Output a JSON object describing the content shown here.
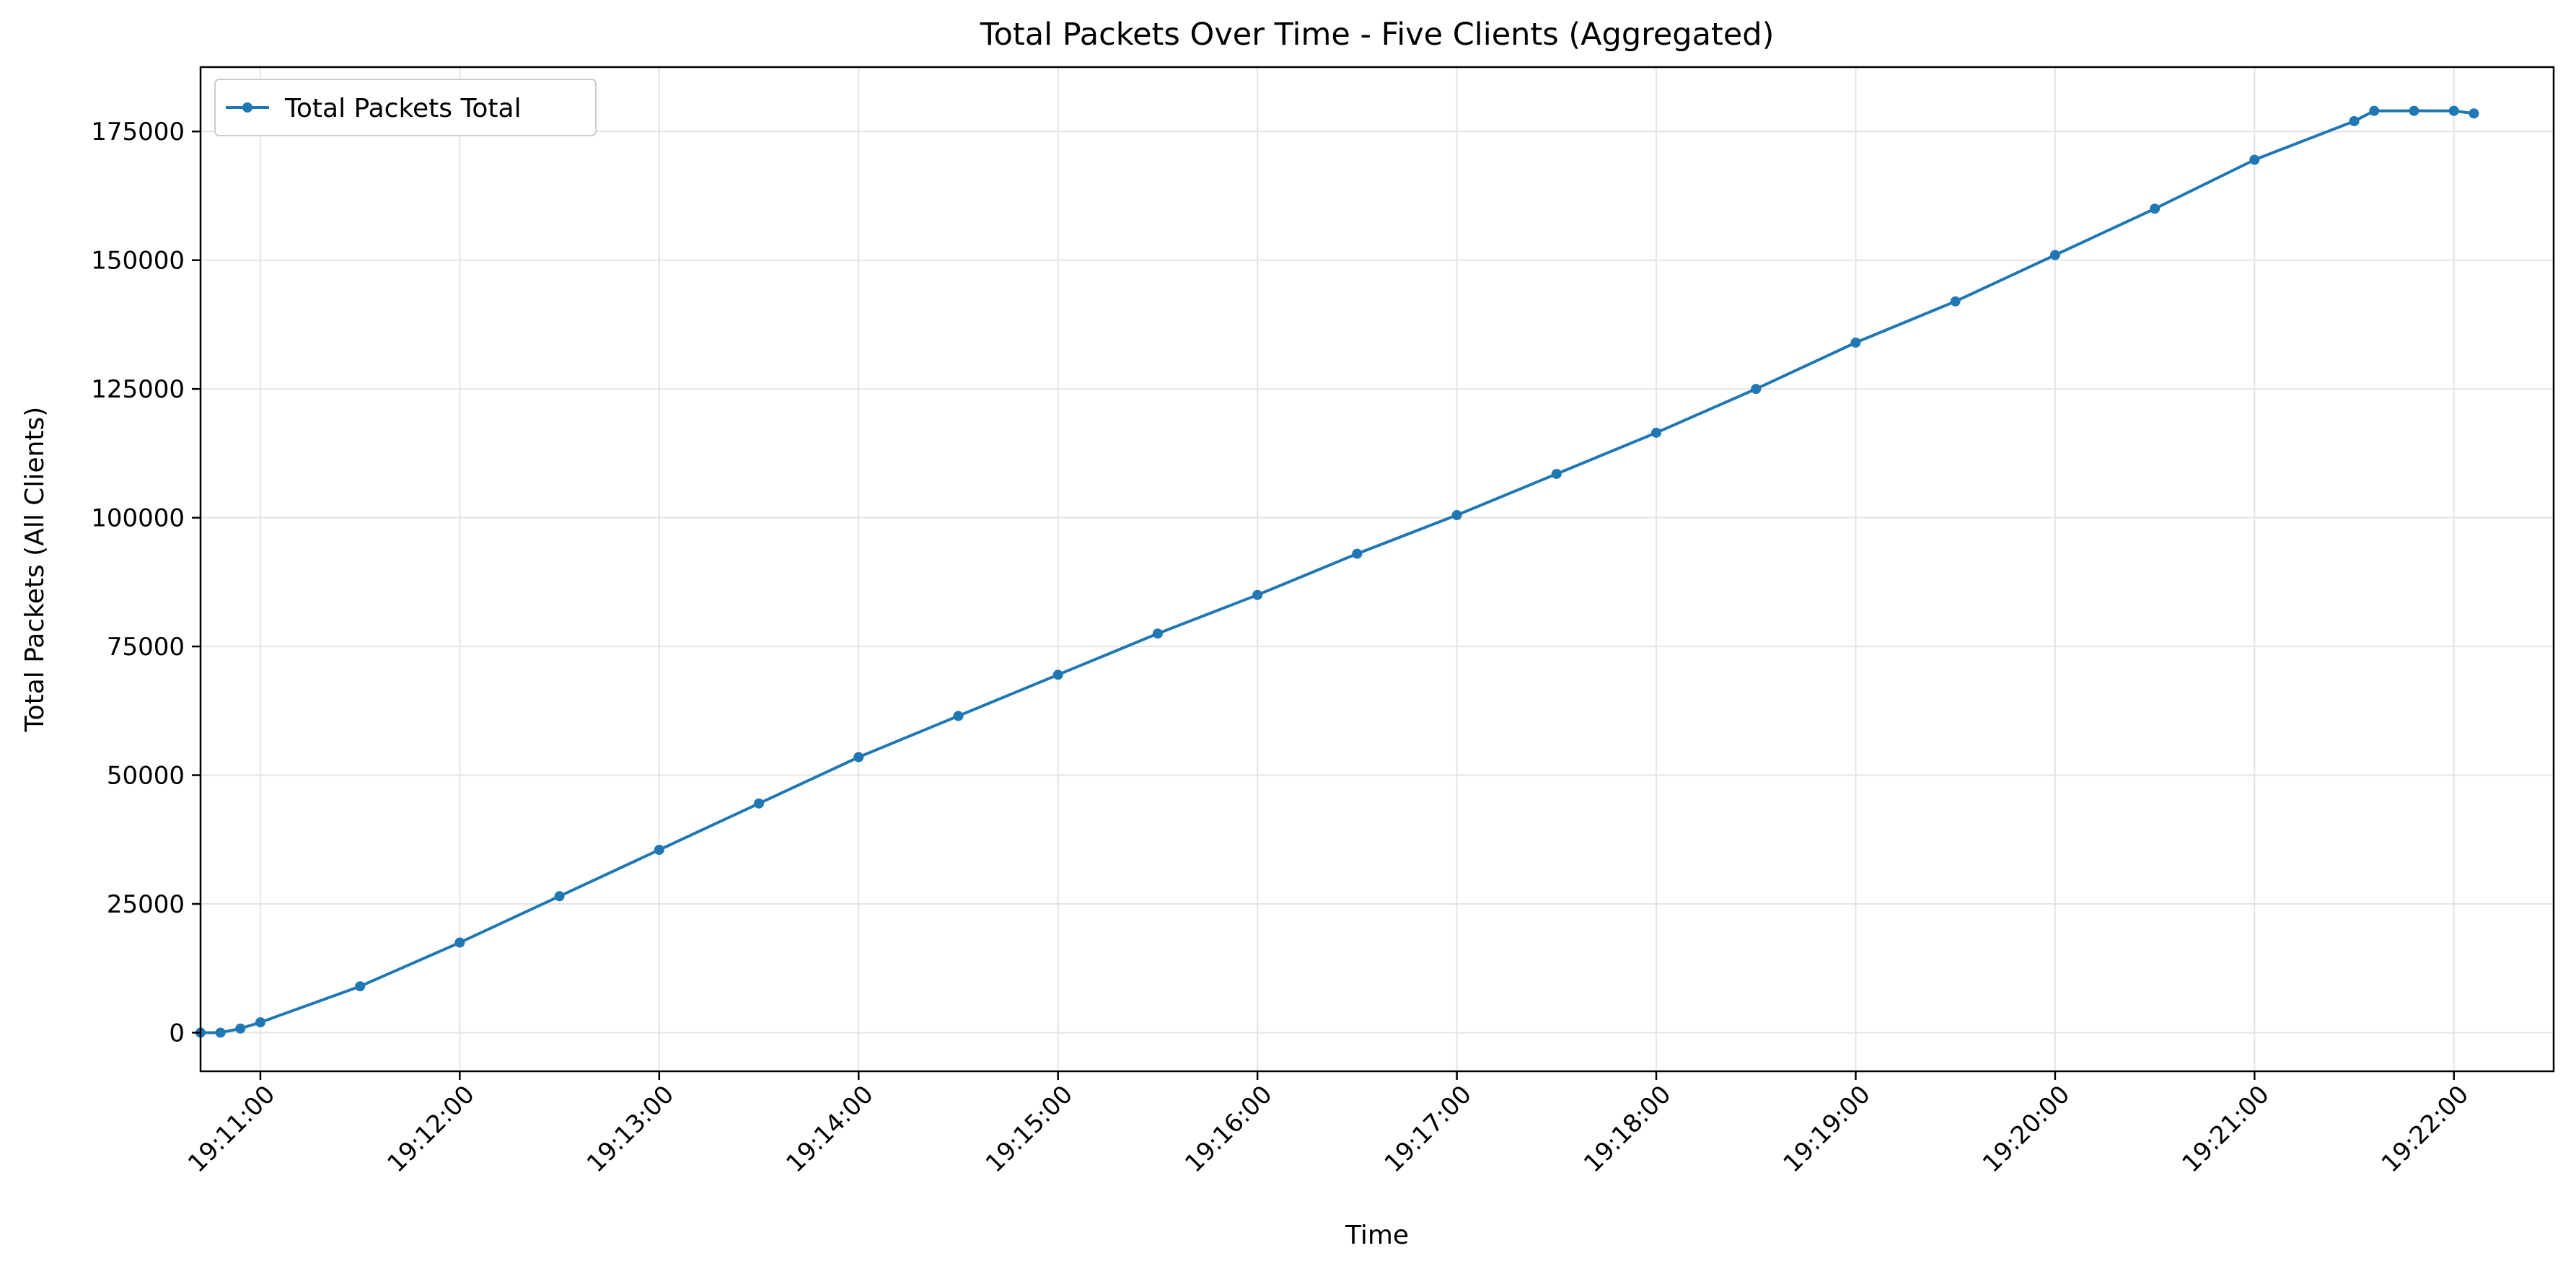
{
  "chart_data": {
    "type": "line",
    "title": "Total Packets Over Time - Five Clients (Aggregated)",
    "xlabel": "Time",
    "ylabel": "Total Packets (All Clients)",
    "legend": {
      "placement": "top-left"
    },
    "grid": true,
    "colors": {
      "series": "#1f77b4",
      "grid": "#e4e4e4"
    },
    "xlim": [
      "19:10:42",
      "19:22:30"
    ],
    "ylim": [
      -7500,
      187500
    ],
    "x_ticks": [
      "19:11:00",
      "19:12:00",
      "19:13:00",
      "19:14:00",
      "19:15:00",
      "19:16:00",
      "19:17:00",
      "19:18:00",
      "19:19:00",
      "19:20:00",
      "19:21:00",
      "19:22:00"
    ],
    "y_ticks": [
      "0",
      "25000",
      "50000",
      "75000",
      "100000",
      "125000",
      "150000",
      "175000"
    ],
    "series": [
      {
        "name": "Total Packets Total",
        "marker": "circle",
        "x": [
          "19:10:42",
          "19:10:48",
          "19:10:54",
          "19:11:00",
          "19:11:30",
          "19:12:00",
          "19:12:30",
          "19:13:00",
          "19:13:30",
          "19:14:00",
          "19:14:30",
          "19:15:00",
          "19:15:30",
          "19:16:00",
          "19:16:30",
          "19:17:00",
          "19:17:30",
          "19:18:00",
          "19:18:30",
          "19:19:00",
          "19:19:30",
          "19:20:00",
          "19:20:30",
          "19:21:00",
          "19:21:30",
          "19:21:36",
          "19:21:48",
          "19:22:00",
          "19:22:06"
        ],
        "y": [
          0,
          0,
          800,
          2000,
          9000,
          17500,
          26500,
          35500,
          44500,
          53500,
          61500,
          69500,
          77500,
          85000,
          93000,
          100500,
          108500,
          116500,
          125000,
          134000,
          142000,
          151000,
          160000,
          169500,
          177000,
          179000,
          179000,
          179000,
          178500
        ]
      }
    ]
  }
}
